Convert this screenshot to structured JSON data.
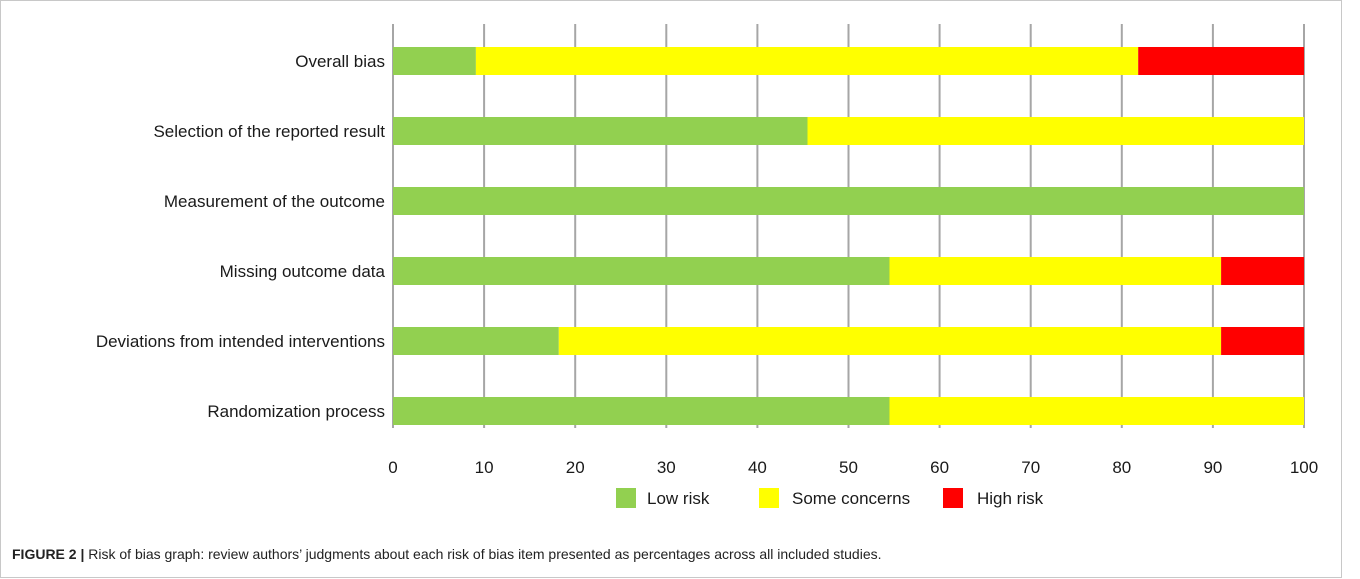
{
  "chart_data": {
    "type": "bar",
    "orientation": "horizontal",
    "stacked": true,
    "categories": [
      "Overall bias",
      "Selection of the reported result",
      "Measurement of the outcome",
      "Missing outcome data",
      "Deviations from intended interventions",
      "Randomization process"
    ],
    "series": [
      {
        "name": "Low risk",
        "color": "#92d050",
        "values": [
          9.1,
          45.5,
          100,
          54.5,
          18.2,
          54.5
        ]
      },
      {
        "name": "Some concerns",
        "color": "#ffff00",
        "values": [
          72.7,
          54.5,
          0,
          36.4,
          72.7,
          45.5
        ]
      },
      {
        "name": "High risk",
        "color": "#ff0000",
        "values": [
          18.2,
          0,
          0,
          9.1,
          9.1,
          0
        ]
      }
    ],
    "xlim": [
      0,
      100
    ],
    "xticks": [
      "0",
      "10",
      "20",
      "30",
      "40",
      "50",
      "60",
      "70",
      "80",
      "90",
      "100"
    ],
    "grid": true,
    "legend_position": "bottom"
  },
  "caption": {
    "label": "FIGURE 2 |",
    "text": " Risk of bias graph: review authors’ judgments about each risk of bias item presented as percentages across all included studies."
  },
  "colors": {
    "frame": "#c8c8c8",
    "grid": "#a6a6a6",
    "text": "#1a1a1a"
  }
}
